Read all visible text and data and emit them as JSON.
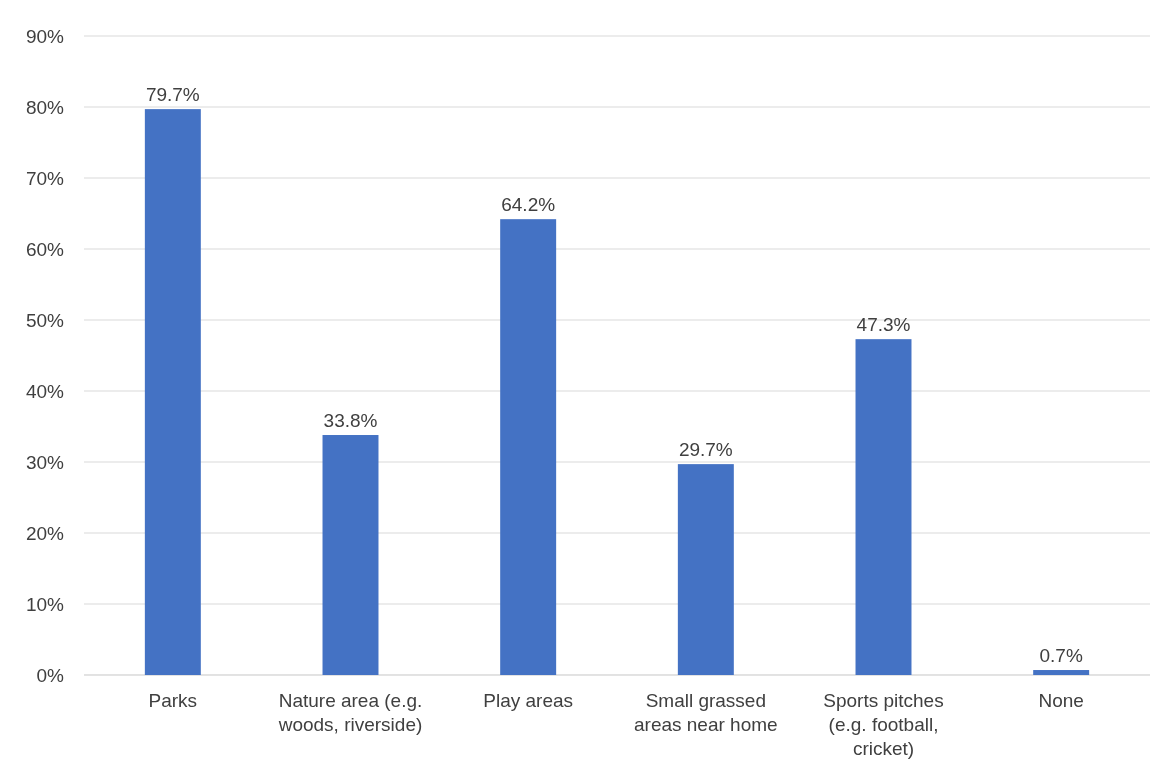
{
  "chart_data": {
    "type": "bar",
    "categories": [
      "Parks",
      "Nature area (e.g. woods, riverside)",
      "Play areas",
      "Small grassed areas near home",
      "Sports pitches (e.g. football, cricket)",
      "None"
    ],
    "values": [
      79.7,
      33.8,
      64.2,
      29.7,
      47.3,
      0.7
    ],
    "value_labels": [
      "79.7%",
      "33.8%",
      "64.2%",
      "29.7%",
      "47.3%",
      "0.7%"
    ],
    "color": "#4472c4",
    "ylim": [
      0,
      90
    ],
    "yticks": [
      {
        "value": 0,
        "label": "0%"
      },
      {
        "value": 10,
        "label": "10%"
      },
      {
        "value": 20,
        "label": "20%"
      },
      {
        "value": 30,
        "label": "30%"
      },
      {
        "value": 40,
        "label": "40%"
      },
      {
        "value": 50,
        "label": "50%"
      },
      {
        "value": 60,
        "label": "60%"
      },
      {
        "value": 70,
        "label": "70%"
      },
      {
        "value": 80,
        "label": "80%"
      },
      {
        "value": 90,
        "label": "90%"
      }
    ],
    "grid": "y"
  }
}
